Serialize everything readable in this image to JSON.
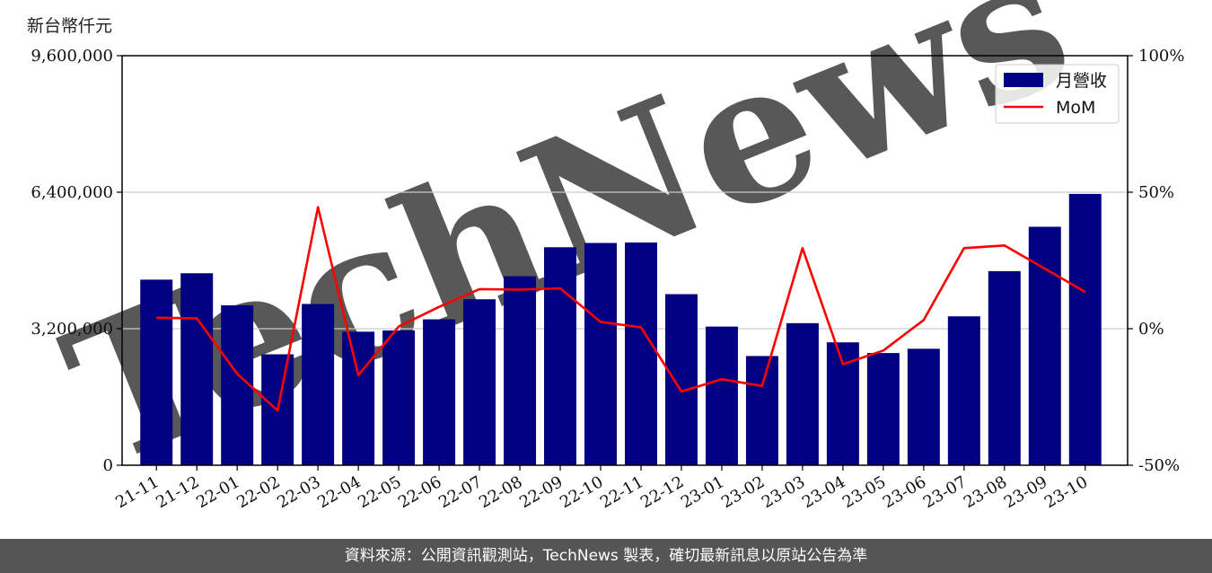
{
  "unit_label": "新台幣仟元",
  "footer_text": "資料來源：公開資訊觀測站，TechNews 製表，確切最新訊息以原站公告為準",
  "watermark": "TechNews",
  "colors": {
    "bar": "#000080",
    "line": "#ff0000",
    "footer_bg": "#555555",
    "watermark": "#f2dede"
  },
  "chart_data": {
    "type": "bar",
    "categories": [
      "21-11",
      "21-12",
      "22-01",
      "22-02",
      "22-03",
      "22-04",
      "22-05",
      "22-06",
      "22-07",
      "22-08",
      "22-09",
      "22-10",
      "22-11",
      "22-12",
      "23-01",
      "23-02",
      "23-03",
      "23-04",
      "23-05",
      "23-06",
      "23-07",
      "23-08",
      "23-09",
      "23-10"
    ],
    "series": [
      {
        "name": "月營收",
        "type": "bar",
        "axis": "left",
        "values": [
          4350000,
          4500000,
          3750000,
          2600000,
          3780000,
          3130000,
          3160000,
          3420000,
          3890000,
          4430000,
          5110000,
          5210000,
          5220000,
          4010000,
          3250000,
          2560000,
          3330000,
          2880000,
          2630000,
          2730000,
          3490000,
          4550000,
          5590000,
          6360000
        ]
      },
      {
        "name": "MoM",
        "type": "line",
        "axis": "right",
        "values": [
          4.0,
          3.8,
          -16.5,
          -30.0,
          44.5,
          -17.0,
          0.8,
          8.0,
          14.5,
          14.3,
          14.8,
          2.5,
          0.5,
          -23.0,
          -18.5,
          -21.0,
          29.5,
          -13.0,
          -8.0,
          3.2,
          29.5,
          30.5,
          22.0,
          13.5
        ]
      }
    ],
    "y_left": {
      "ylim": [
        0,
        9600000
      ],
      "ticks": [
        0,
        3200000,
        6400000,
        9600000
      ],
      "tick_labels": [
        "0",
        "3,200,000",
        "6,400,000",
        "9,600,000"
      ]
    },
    "y_right": {
      "ylim": [
        -50,
        100
      ],
      "ticks": [
        -50,
        0,
        50,
        100
      ],
      "tick_labels": [
        "-50%",
        "0%",
        "50%",
        "100%"
      ]
    },
    "grid": "horizontal",
    "legend_position": "top-right"
  }
}
